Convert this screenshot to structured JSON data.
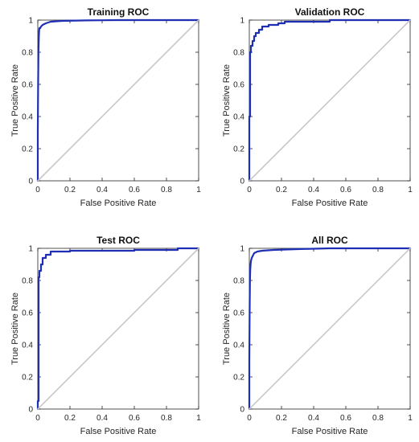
{
  "chart_data": [
    {
      "type": "line",
      "title": "Training ROC",
      "xlabel": "False Positive Rate",
      "ylabel": "True Positive Rate",
      "xlim": [
        0,
        1
      ],
      "ylim": [
        0,
        1
      ],
      "x_ticks": [
        "0",
        "0.2",
        "0.4",
        "0.6",
        "0.8",
        "1"
      ],
      "y_ticks": [
        "0",
        "0.2",
        "0.4",
        "0.6",
        "0.8",
        "1"
      ],
      "grid": false,
      "series": [
        {
          "color": "#1f2fb5",
          "x": [
            0,
            0,
            0.002,
            0.004,
            0.006,
            0.008,
            0.01,
            0.015,
            0.02,
            0.03,
            0.05,
            0.08,
            0.15,
            0.3,
            0.5,
            1.0
          ],
          "y": [
            0,
            0.3,
            0.6,
            0.8,
            0.88,
            0.93,
            0.95,
            0.95,
            0.96,
            0.97,
            0.98,
            0.99,
            0.995,
            0.998,
            1.0,
            1.0
          ]
        },
        {
          "color": "#c8c8c8",
          "x": [
            0,
            1
          ],
          "y": [
            0,
            1
          ]
        }
      ]
    },
    {
      "type": "line",
      "title": "Validation ROC",
      "xlabel": "False Positive Rate",
      "ylabel": "True Positive Rate",
      "xlim": [
        0,
        1
      ],
      "ylim": [
        0,
        1
      ],
      "x_ticks": [
        "0",
        "0.2",
        "0.4",
        "0.6",
        "0.8",
        "1"
      ],
      "y_ticks": [
        "0",
        "0.2",
        "0.4",
        "0.6",
        "0.8",
        "1"
      ],
      "grid": false,
      "series": [
        {
          "color": "#1f2fb5",
          "x": [
            0,
            0,
            0.005,
            0.005,
            0.01,
            0.01,
            0.02,
            0.02,
            0.03,
            0.03,
            0.04,
            0.04,
            0.06,
            0.06,
            0.08,
            0.08,
            0.12,
            0.12,
            0.18,
            0.18,
            0.22,
            0.22,
            0.5,
            0.5,
            1.0
          ],
          "y": [
            0,
            0.4,
            0.4,
            0.8,
            0.8,
            0.84,
            0.84,
            0.87,
            0.87,
            0.9,
            0.9,
            0.92,
            0.92,
            0.94,
            0.94,
            0.96,
            0.96,
            0.97,
            0.97,
            0.98,
            0.98,
            0.99,
            0.99,
            1.0,
            1.0
          ]
        },
        {
          "color": "#c8c8c8",
          "x": [
            0,
            1
          ],
          "y": [
            0,
            1
          ]
        }
      ]
    },
    {
      "type": "line",
      "title": "Test ROC",
      "xlabel": "False Positive Rate",
      "ylabel": "True Positive Rate",
      "xlim": [
        0,
        1
      ],
      "ylim": [
        0,
        1
      ],
      "x_ticks": [
        "0",
        "0.2",
        "0.4",
        "0.6",
        "0.8",
        "1"
      ],
      "y_ticks": [
        "0",
        "0.2",
        "0.4",
        "0.6",
        "0.8",
        "1"
      ],
      "grid": false,
      "series": [
        {
          "color": "#1f2fb5",
          "x": [
            0,
            0,
            0.005,
            0.005,
            0.01,
            0.01,
            0.02,
            0.02,
            0.03,
            0.03,
            0.05,
            0.05,
            0.08,
            0.08,
            0.2,
            0.2,
            0.6,
            0.6,
            0.87,
            0.87,
            1.0
          ],
          "y": [
            0,
            0.05,
            0.05,
            0.82,
            0.82,
            0.86,
            0.86,
            0.9,
            0.9,
            0.94,
            0.94,
            0.96,
            0.96,
            0.98,
            0.98,
            0.985,
            0.985,
            0.99,
            0.99,
            1.0,
            1.0
          ]
        },
        {
          "color": "#c8c8c8",
          "x": [
            0,
            1
          ],
          "y": [
            0,
            1
          ]
        }
      ]
    },
    {
      "type": "line",
      "title": "All ROC",
      "xlabel": "False Positive Rate",
      "ylabel": "True Positive Rate",
      "xlim": [
        0,
        1
      ],
      "ylim": [
        0,
        1
      ],
      "x_ticks": [
        "0",
        "0.2",
        "0.4",
        "0.6",
        "0.8",
        "1"
      ],
      "y_ticks": [
        "0",
        "0.2",
        "0.4",
        "0.6",
        "0.8",
        "1"
      ],
      "grid": false,
      "series": [
        {
          "color": "#1f2fb5",
          "x": [
            0,
            0,
            0.002,
            0.004,
            0.006,
            0.008,
            0.01,
            0.015,
            0.02,
            0.03,
            0.05,
            0.08,
            0.15,
            0.3,
            0.5,
            1.0
          ],
          "y": [
            0,
            0.3,
            0.6,
            0.8,
            0.87,
            0.9,
            0.92,
            0.94,
            0.95,
            0.97,
            0.98,
            0.985,
            0.99,
            0.995,
            1.0,
            1.0
          ]
        },
        {
          "color": "#c8c8c8",
          "x": [
            0,
            1
          ],
          "y": [
            0,
            1
          ]
        }
      ]
    }
  ]
}
